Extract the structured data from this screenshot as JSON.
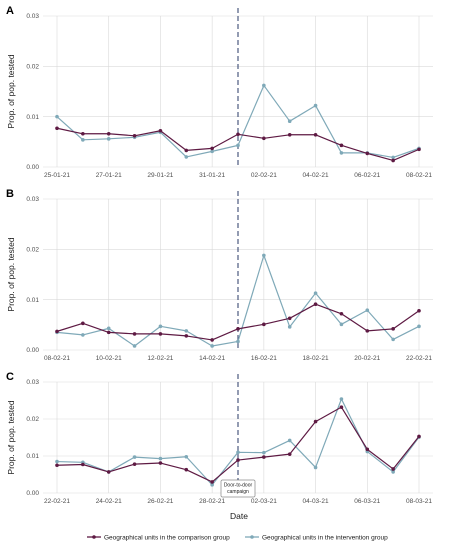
{
  "chart_data": [
    {
      "type": "line",
      "panel_label": "A",
      "ylabel": "Prop. of pop. tested",
      "ylim": [
        0,
        0.03
      ],
      "yticks": [
        "0.00",
        "0.01",
        "0.02",
        "0.03"
      ],
      "x": [
        "25-01-21",
        "26-01-21",
        "27-01-21",
        "28-01-21",
        "29-01-21",
        "30-01-21",
        "31-01-21",
        "01-02-21",
        "02-02-21",
        "03-02-21",
        "04-02-21",
        "05-02-21",
        "06-02-21",
        "07-02-21",
        "08-02-21"
      ],
      "xtick_labels": [
        "25-01-21",
        "27-01-21",
        "29-01-21",
        "31-01-21",
        "02-02-21",
        "04-02-21",
        "06-02-21",
        "08-02-21"
      ],
      "intervention_index": 7.0,
      "series": [
        {
          "name": "Geographical units in the comparison group",
          "color": "#5e1a43",
          "values": [
            0.0077,
            0.0066,
            0.0066,
            0.0062,
            0.0072,
            0.0033,
            0.0037,
            0.0065,
            0.0057,
            0.0064,
            0.0064,
            0.0043,
            0.0027,
            0.0013,
            0.0035
          ]
        },
        {
          "name": "Geographical units in the intervention group",
          "color": "#7fa9b8",
          "values": [
            0.01,
            0.0054,
            0.0056,
            0.0059,
            0.0069,
            0.002,
            0.0031,
            0.0043,
            0.0162,
            0.0091,
            0.0122,
            0.0028,
            0.0028,
            0.0019,
            0.0037
          ]
        }
      ]
    },
    {
      "type": "line",
      "panel_label": "B",
      "ylabel": "Prop. of pop. tested",
      "ylim": [
        0,
        0.03
      ],
      "yticks": [
        "0.00",
        "0.01",
        "0.02",
        "0.03"
      ],
      "x": [
        "08-02-21",
        "09-02-21",
        "10-02-21",
        "11-02-21",
        "12-02-21",
        "13-02-21",
        "14-02-21",
        "15-02-21",
        "16-02-21",
        "17-02-21",
        "18-02-21",
        "19-02-21",
        "20-02-21",
        "21-02-21",
        "22-02-21"
      ],
      "xtick_labels": [
        "08-02-21",
        "10-02-21",
        "12-02-21",
        "14-02-21",
        "16-02-21",
        "18-02-21",
        "20-02-21",
        "22-02-21"
      ],
      "intervention_index": 7.0,
      "series": [
        {
          "name": "Geographical units in the comparison group",
          "color": "#5e1a43",
          "values": [
            0.0037,
            0.0053,
            0.0035,
            0.0032,
            0.0032,
            0.0028,
            0.002,
            0.0042,
            0.0051,
            0.0063,
            0.0091,
            0.0072,
            0.0038,
            0.0042,
            0.0078
          ]
        },
        {
          "name": "Geographical units in the intervention group",
          "color": "#7fa9b8",
          "values": [
            0.0035,
            0.003,
            0.0043,
            0.0008,
            0.0047,
            0.0038,
            0.0008,
            0.0017,
            0.0188,
            0.0046,
            0.0113,
            0.0051,
            0.0079,
            0.0021,
            0.0047
          ]
        }
      ]
    },
    {
      "type": "line",
      "panel_label": "C",
      "ylabel": "Prop. of pop. tested",
      "xlabel": "Date",
      "ylim": [
        0,
        0.03
      ],
      "yticks": [
        "0.00",
        "0.01",
        "0.02",
        "0.03"
      ],
      "x": [
        "22-02-21",
        "23-02-21",
        "24-02-21",
        "25-02-21",
        "26-02-21",
        "27-02-21",
        "28-02-21",
        "01-03-21",
        "02-03-21",
        "03-03-21",
        "04-03-21",
        "05-03-21",
        "06-03-21",
        "07-03-21",
        "08-03-21"
      ],
      "xtick_labels": [
        "22-02-21",
        "24-02-21",
        "26-02-21",
        "28-02-21",
        "02-03-21",
        "04-03-21",
        "06-03-21",
        "08-03-21"
      ],
      "intervention_index": 7.0,
      "annotation": "Door-to-door campaign",
      "series": [
        {
          "name": "Geographical units in the comparison group",
          "color": "#5e1a43",
          "values": [
            0.0075,
            0.0077,
            0.0057,
            0.0078,
            0.0081,
            0.0063,
            0.003,
            0.0089,
            0.0097,
            0.0105,
            0.0193,
            0.0232,
            0.0118,
            0.0065,
            0.0153
          ]
        },
        {
          "name": "Geographical units in the intervention group",
          "color": "#7fa9b8",
          "values": [
            0.0085,
            0.0083,
            0.0057,
            0.0097,
            0.0093,
            0.0098,
            0.0022,
            0.011,
            0.0109,
            0.0142,
            0.0069,
            0.0254,
            0.0112,
            0.0057,
            0.0151
          ]
        }
      ]
    }
  ],
  "legend": {
    "items": [
      {
        "label": "Geographical units in the comparison group",
        "color": "#5e1a43"
      },
      {
        "label": "Geographical units in the intervention group",
        "color": "#7fa9b8"
      }
    ]
  }
}
